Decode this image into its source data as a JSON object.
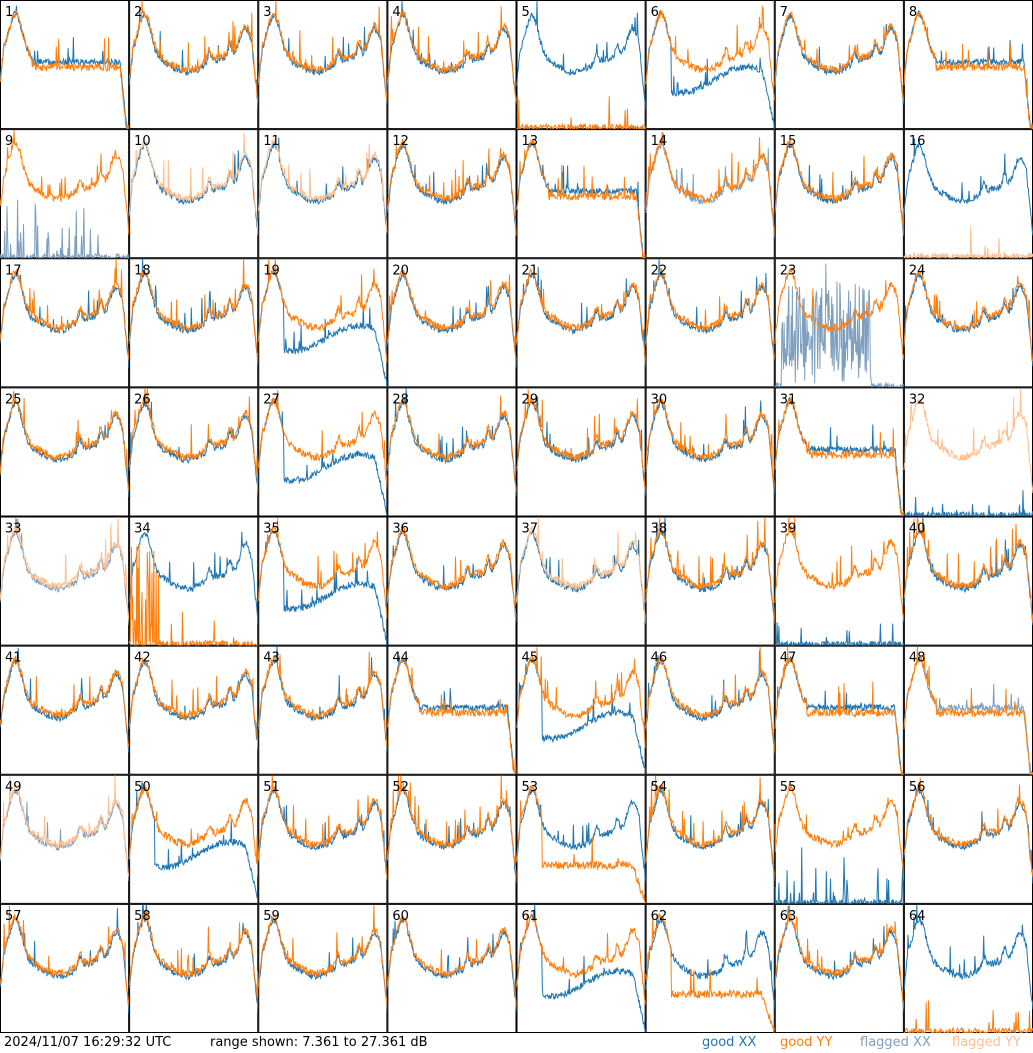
{
  "footer": {
    "timestamp": "2024/11/07 16:29:32 UTC",
    "range_text": "range shown: 7.361 to 27.361 dB"
  },
  "legend": [
    {
      "label": "good XX",
      "color": "#1f77b4"
    },
    {
      "label": "good YY",
      "color": "#ff7f0e"
    },
    {
      "label": "flagged XX",
      "color": "#7f9fbf"
    },
    {
      "label": "flagged YY",
      "color": "#ffbf8f"
    }
  ],
  "chart_data": {
    "type": "line",
    "grid_layout": {
      "rows": 8,
      "cols": 8
    },
    "ylim": [
      7.361,
      27.361
    ],
    "yunit": "dB",
    "series_names": [
      "good XX",
      "good YY",
      "flagged XX",
      "flagged YY"
    ],
    "panels": [
      {
        "label": "1",
        "xx": "good",
        "yy": "good",
        "shape": "drop"
      },
      {
        "label": "2",
        "xx": "good",
        "yy": "good",
        "shape": "normal"
      },
      {
        "label": "3",
        "xx": "good",
        "yy": "good",
        "shape": "normal"
      },
      {
        "label": "4",
        "xx": "good",
        "yy": "good",
        "shape": "normal"
      },
      {
        "label": "5",
        "xx": "good",
        "yy": "good",
        "shape": "yy_missing"
      },
      {
        "label": "6",
        "xx": "good",
        "yy": "good",
        "shape": "xx_low"
      },
      {
        "label": "7",
        "xx": "good",
        "yy": "good",
        "shape": "normal"
      },
      {
        "label": "8",
        "xx": "good",
        "yy": "good",
        "shape": "drop"
      },
      {
        "label": "9",
        "xx": "flagged",
        "yy": "good",
        "shape": "xx_spikes"
      },
      {
        "label": "10",
        "xx": "good",
        "yy": "flagged",
        "shape": "normal"
      },
      {
        "label": "11",
        "xx": "good",
        "yy": "flagged",
        "shape": "normal"
      },
      {
        "label": "12",
        "xx": "good",
        "yy": "good",
        "shape": "normal"
      },
      {
        "label": "13",
        "xx": "good",
        "yy": "good",
        "shape": "drop"
      },
      {
        "label": "14",
        "xx": "flagged",
        "yy": "good",
        "shape": "normal"
      },
      {
        "label": "15",
        "xx": "good",
        "yy": "good",
        "shape": "normal"
      },
      {
        "label": "16",
        "xx": "good",
        "yy": "flagged",
        "shape": "yy_missing"
      },
      {
        "label": "17",
        "xx": "good",
        "yy": "good",
        "shape": "normal"
      },
      {
        "label": "18",
        "xx": "good",
        "yy": "good",
        "shape": "normal"
      },
      {
        "label": "19",
        "xx": "good",
        "yy": "good",
        "shape": "xx_low"
      },
      {
        "label": "20",
        "xx": "good",
        "yy": "good",
        "shape": "normal"
      },
      {
        "label": "21",
        "xx": "good",
        "yy": "good",
        "shape": "normal"
      },
      {
        "label": "22",
        "xx": "good",
        "yy": "good",
        "shape": "normal"
      },
      {
        "label": "23",
        "xx": "flagged",
        "yy": "good",
        "shape": "xx_noise"
      },
      {
        "label": "24",
        "xx": "good",
        "yy": "good",
        "shape": "normal"
      },
      {
        "label": "25",
        "xx": "good",
        "yy": "good",
        "shape": "normal"
      },
      {
        "label": "26",
        "xx": "good",
        "yy": "good",
        "shape": "normal"
      },
      {
        "label": "27",
        "xx": "good",
        "yy": "good",
        "shape": "xx_low"
      },
      {
        "label": "28",
        "xx": "good",
        "yy": "good",
        "shape": "normal"
      },
      {
        "label": "29",
        "xx": "good",
        "yy": "good",
        "shape": "normal"
      },
      {
        "label": "30",
        "xx": "good",
        "yy": "good",
        "shape": "normal"
      },
      {
        "label": "31",
        "xx": "good",
        "yy": "good",
        "shape": "drop"
      },
      {
        "label": "32",
        "xx": "good",
        "yy": "flagged",
        "shape": "xx_missing"
      },
      {
        "label": "33",
        "xx": "flagged",
        "yy": "flagged",
        "shape": "normal"
      },
      {
        "label": "34",
        "xx": "good",
        "yy": "good",
        "shape": "yy_spikes"
      },
      {
        "label": "35",
        "xx": "good",
        "yy": "good",
        "shape": "xx_low"
      },
      {
        "label": "36",
        "xx": "good",
        "yy": "good",
        "shape": "normal"
      },
      {
        "label": "37",
        "xx": "good",
        "yy": "flagged",
        "shape": "normal"
      },
      {
        "label": "38",
        "xx": "good",
        "yy": "good",
        "shape": "normal"
      },
      {
        "label": "39",
        "xx": "good",
        "yy": "good",
        "shape": "xx_missing"
      },
      {
        "label": "40",
        "xx": "good",
        "yy": "good",
        "shape": "normal"
      },
      {
        "label": "41",
        "xx": "good",
        "yy": "good",
        "shape": "normal"
      },
      {
        "label": "42",
        "xx": "good",
        "yy": "good",
        "shape": "normal"
      },
      {
        "label": "43",
        "xx": "good",
        "yy": "good",
        "shape": "normal"
      },
      {
        "label": "44",
        "xx": "good",
        "yy": "good",
        "shape": "drop"
      },
      {
        "label": "45",
        "xx": "good",
        "yy": "good",
        "shape": "xx_low"
      },
      {
        "label": "46",
        "xx": "good",
        "yy": "good",
        "shape": "normal"
      },
      {
        "label": "47",
        "xx": "good",
        "yy": "good",
        "shape": "drop"
      },
      {
        "label": "48",
        "xx": "flagged",
        "yy": "good",
        "shape": "drop"
      },
      {
        "label": "49",
        "xx": "flagged",
        "yy": "flagged",
        "shape": "normal"
      },
      {
        "label": "50",
        "xx": "good",
        "yy": "good",
        "shape": "xx_low"
      },
      {
        "label": "51",
        "xx": "good",
        "yy": "good",
        "shape": "normal"
      },
      {
        "label": "52",
        "xx": "good",
        "yy": "good",
        "shape": "normal"
      },
      {
        "label": "53",
        "xx": "good",
        "yy": "good",
        "shape": "yy_low"
      },
      {
        "label": "54",
        "xx": "good",
        "yy": "good",
        "shape": "normal"
      },
      {
        "label": "55",
        "xx": "good",
        "yy": "good",
        "shape": "xx_spikes"
      },
      {
        "label": "56",
        "xx": "good",
        "yy": "good",
        "shape": "normal"
      },
      {
        "label": "57",
        "xx": "good",
        "yy": "good",
        "shape": "normal"
      },
      {
        "label": "58",
        "xx": "good",
        "yy": "good",
        "shape": "normal"
      },
      {
        "label": "59",
        "xx": "good",
        "yy": "good",
        "shape": "normal"
      },
      {
        "label": "60",
        "xx": "good",
        "yy": "good",
        "shape": "normal"
      },
      {
        "label": "61",
        "xx": "good",
        "yy": "good",
        "shape": "xx_low"
      },
      {
        "label": "62",
        "xx": "good",
        "yy": "good",
        "shape": "yy_low"
      },
      {
        "label": "63",
        "xx": "good",
        "yy": "good",
        "shape": "normal"
      },
      {
        "label": "64",
        "xx": "good",
        "yy": "good",
        "shape": "yy_missing"
      }
    ]
  }
}
